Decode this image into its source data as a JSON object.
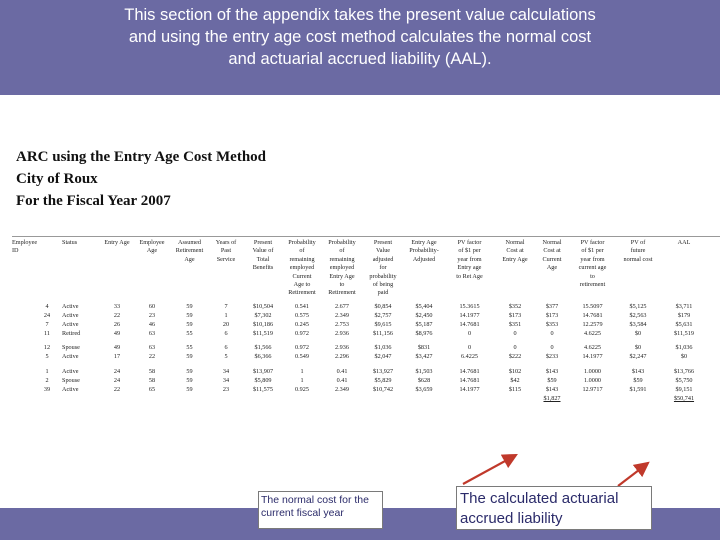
{
  "header": {
    "lines": [
      "This section of the appendix takes the present value calculations",
      "and using the entry age cost method calculates the normal cost",
      "and actuarial accrued liability (AAL)."
    ]
  },
  "colors": {
    "band": "#6b6aa3",
    "arrow": "#c0392b",
    "annotation_text": "#2b2b6a"
  },
  "report": {
    "title": [
      "ARC using the Entry Age Cost Method",
      "City of Roux",
      "For the Fiscal Year 2007"
    ]
  },
  "table": {
    "headers": [
      [
        "Employee",
        "ID"
      ],
      [
        "Status"
      ],
      [
        "Entry Age"
      ],
      [
        "Employee",
        "Age"
      ],
      [
        "Assumed",
        "Retirement",
        "Age"
      ],
      [
        "Years of",
        "Past",
        "Service"
      ],
      [
        "Present",
        "Value of",
        "Total",
        "Benefits"
      ],
      [
        "Probability",
        "of",
        "remaining",
        "employed",
        "Current",
        "Age to",
        "Retirement"
      ],
      [
        "Probability",
        "of",
        "remaining",
        "employed",
        "Entry Age",
        "to",
        "Retirement"
      ],
      [
        "Present",
        "Value",
        "adjusted",
        "for",
        "probability",
        "of being",
        "paid"
      ],
      [
        "Entry Age",
        "Probability-",
        "Adjusted"
      ],
      [
        "PV factor",
        "of $1 per",
        "year from",
        "Entry age",
        "to Ret Age"
      ],
      [
        "Normal",
        "Cost at",
        "Entry Age"
      ],
      [
        "Normal",
        "Cost at",
        "Current",
        "Age"
      ],
      [
        "PV factor",
        "of $1 per",
        "year from",
        "current age",
        "to",
        "retirement"
      ],
      [
        "PV of",
        "future",
        "normal cost"
      ],
      [
        "AAL"
      ]
    ],
    "groups": [
      [
        [
          "4",
          "Active",
          "33",
          "60",
          "59",
          "7",
          "$10,504",
          "0.541",
          "2.677",
          "$0,854",
          "$5,404",
          "15.3615",
          "$352",
          "$377",
          "15.5097",
          "$5,125",
          "$3,711"
        ],
        [
          "24",
          "Active",
          "22",
          "23",
          "59",
          "1",
          "$7,302",
          "0.575",
          "2.349",
          "$2,757",
          "$2,450",
          "14.1977",
          "$173",
          "$173",
          "14.7681",
          "$2,563",
          "$179"
        ],
        [
          "7",
          "Active",
          "26",
          "46",
          "59",
          "20",
          "$10,186",
          "0.245",
          "2.753",
          "$9,615",
          "$5,187",
          "14.7681",
          "$351",
          "$353",
          "12.2579",
          "$3,584",
          "$5,631"
        ],
        [
          "11",
          "Retired",
          "49",
          "63",
          "55",
          "6",
          "$11,519",
          "0.972",
          "2.936",
          "$11,156",
          "$8,976",
          "0",
          "0",
          "0",
          "4.6225",
          "$0",
          "$11,519"
        ]
      ],
      [
        [
          "12",
          "Spouse",
          "49",
          "63",
          "55",
          "6",
          "$1,566",
          "0.972",
          "2.936",
          "$1,036",
          "$831",
          "0",
          "0",
          "0",
          "4.6225",
          "$0",
          "$1,036"
        ],
        [
          "5",
          "Active",
          "17",
          "22",
          "59",
          "5",
          "$6,366",
          "0.549",
          "2.296",
          "$2,047",
          "$3,427",
          "6.4225",
          "$222",
          "$233",
          "14.1977",
          "$2,247",
          "$0"
        ]
      ],
      [
        [
          "1",
          "Active",
          "24",
          "58",
          "59",
          "34",
          "$13,907",
          "1",
          "0.41",
          "$13,927",
          "$1,503",
          "14.7681",
          "$102",
          "$143",
          "1.0000",
          "$143",
          "$13,766"
        ],
        [
          "2",
          "Spouse",
          "24",
          "58",
          "59",
          "34",
          "$5,809",
          "1",
          "0.41",
          "$5,829",
          "$628",
          "14.7681",
          "$42",
          "$59",
          "1.0000",
          "$59",
          "$5,750"
        ],
        [
          "39",
          "Active",
          "22",
          "65",
          "59",
          "23",
          "$11,575",
          "0.925",
          "2.349",
          "$10,742",
          "$3,659",
          "14.1977",
          "$115",
          "$143",
          "12.9717",
          "$1,591",
          "$9,151"
        ]
      ]
    ],
    "totals": {
      "normal_cost": "$1,827",
      "aal": "$50,741"
    }
  },
  "annotations": {
    "normal_cost": [
      "The normal cost for the",
      "current fiscal year"
    ],
    "aal": [
      "The calculated actuarial",
      "accrued liability"
    ]
  }
}
